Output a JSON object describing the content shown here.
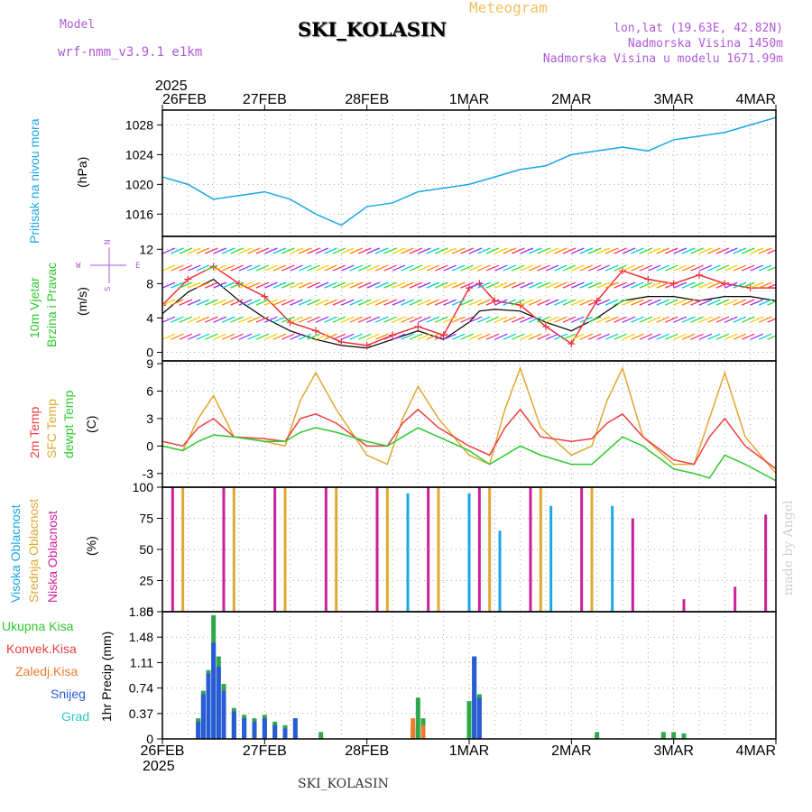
{
  "header": {
    "model_label": "Model",
    "model_name": "wrf-nmm_v3.9.1 e1km",
    "meteogram_label": "Meteogram",
    "station": "SKI_KOLASIN",
    "lonlat": "lon,lat (19.63E, 42.82N)",
    "altitude": "Nadmorska Visina 1450m",
    "model_altitude": "Nadmorska Visina u modelu 1671.99m"
  },
  "footer": {
    "station": "SKI_KOLASIN",
    "credit": "made by Angel"
  },
  "colors": {
    "pressure": "#1aa7e6",
    "wind_speed": "#000000",
    "wind_gust": "#e8303a",
    "temp_2m": "#ee4040",
    "temp_sfc": "#e0a830",
    "dewpt": "#2ec82e",
    "cloud_high": "#1aa7e6",
    "cloud_mid": "#e0a830",
    "cloud_low": "#cc1f99",
    "precip_total": "#2ea84a",
    "precip_conv": "#e84040",
    "precip_frz": "#f07a30",
    "precip_snow": "#2a5bd7",
    "precip_graupel": "#2ec8c8"
  },
  "chart_data": [
    {
      "type": "line",
      "panel": "pressure",
      "labels": {
        "name": "Pritisak na nivou mora",
        "unit": "(hPa)"
      },
      "x_dates": [
        "26FEB",
        "27FEB",
        "28FEB",
        "1MAR",
        "2MAR",
        "3MAR",
        "4MAR"
      ],
      "x_year": "2025",
      "ylim": [
        1013,
        1030
      ],
      "yticks": [
        1016,
        1020,
        1024,
        1028
      ],
      "grid": true,
      "series": [
        {
          "x": [
            0,
            0.25,
            0.5,
            0.75,
            1.0,
            1.25,
            1.5,
            1.75,
            2.0,
            2.25,
            2.5,
            2.75,
            3.0,
            3.25,
            3.5,
            3.75,
            4.0,
            4.25,
            4.5,
            4.75,
            5.0,
            5.25,
            5.5,
            5.75,
            6.0
          ],
          "y": [
            1021,
            1020,
            1018,
            1018.5,
            1019,
            1018,
            1016,
            1014.5,
            1017,
            1017.5,
            1019,
            1019.5,
            1020,
            1021,
            1022,
            1022.5,
            1024,
            1024.5,
            1025,
            1024.5,
            1026,
            1026.5,
            1027,
            1028,
            1029
          ]
        }
      ]
    },
    {
      "type": "line",
      "panel": "wind",
      "labels": {
        "name": "10m Vjetar",
        "name2": "Brzina i Pravac",
        "unit": "(m/s)"
      },
      "compass": {
        "n": "N",
        "s": "S",
        "e": "E",
        "w": "W"
      },
      "ylim": [
        -1,
        13.5
      ],
      "yticks": [
        0,
        4,
        8,
        12
      ],
      "grid": true,
      "series": [
        {
          "role": "speed",
          "x": [
            0,
            0.25,
            0.5,
            0.75,
            1.0,
            1.25,
            1.5,
            1.75,
            2.0,
            2.25,
            2.5,
            2.75,
            3.0,
            3.1,
            3.25,
            3.5,
            3.75,
            4.0,
            4.25,
            4.5,
            4.75,
            5.0,
            5.25,
            5.5,
            5.75,
            6.0
          ],
          "y": [
            4.5,
            7,
            8.5,
            6,
            4,
            2.5,
            1.5,
            0.8,
            0.5,
            1.5,
            2.5,
            1.5,
            3.5,
            4.8,
            5,
            4.8,
            3.5,
            2.5,
            4,
            6,
            6.5,
            6.5,
            6,
            6.5,
            6.5,
            6
          ]
        },
        {
          "role": "gust",
          "x": [
            0,
            0.25,
            0.5,
            0.75,
            1.0,
            1.25,
            1.5,
            1.75,
            2.0,
            2.25,
            2.5,
            2.75,
            3.0,
            3.1,
            3.25,
            3.5,
            3.75,
            4.0,
            4.25,
            4.5,
            4.75,
            5.0,
            5.25,
            5.5,
            5.75,
            6.0
          ],
          "y": [
            5.5,
            8.5,
            10,
            8,
            6.5,
            3.5,
            2.5,
            1.2,
            0.8,
            2,
            3,
            2,
            7.5,
            8,
            6,
            5.5,
            3,
            1,
            6,
            9.5,
            8.5,
            8,
            9,
            8,
            7.5,
            7.5
          ]
        }
      ]
    },
    {
      "type": "line",
      "panel": "temperature",
      "labels": {
        "name_2m": "2m Temp",
        "name_sfc": "SFC Temp",
        "name_dewpt": "dewpt Temp",
        "unit": "(C)"
      },
      "ylim": [
        -4.5,
        9.3
      ],
      "yticks": [
        -3,
        0,
        3,
        6,
        9
      ],
      "grid": true,
      "series": [
        {
          "role": "sfc",
          "x": [
            0,
            0.2,
            0.35,
            0.5,
            0.7,
            1.0,
            1.2,
            1.35,
            1.5,
            1.7,
            2.0,
            2.2,
            2.35,
            2.5,
            2.7,
            3.0,
            3.2,
            3.35,
            3.5,
            3.7,
            4.0,
            4.2,
            4.35,
            4.5,
            4.7,
            5.0,
            5.2,
            5.35,
            5.5,
            5.7,
            6.0
          ],
          "y": [
            0,
            -0.5,
            3,
            5.5,
            1,
            0.5,
            0,
            5,
            8,
            4,
            -1,
            -2,
            3,
            6.5,
            3,
            -1,
            -2,
            4,
            8.5,
            2,
            -1,
            0,
            5,
            8.5,
            1,
            -2,
            -2,
            3,
            8,
            1,
            -3
          ]
        },
        {
          "role": "t2m",
          "x": [
            0,
            0.2,
            0.35,
            0.5,
            0.7,
            1.0,
            1.2,
            1.35,
            1.5,
            1.7,
            2.0,
            2.2,
            2.35,
            2.5,
            2.7,
            3.0,
            3.2,
            3.35,
            3.5,
            3.7,
            4.0,
            4.2,
            4.35,
            4.5,
            4.7,
            5.0,
            5.2,
            5.35,
            5.5,
            5.7,
            6.0
          ],
          "y": [
            0.5,
            0,
            2,
            3,
            1,
            0.8,
            0.5,
            3,
            3.5,
            2.5,
            0,
            0,
            2.5,
            4,
            2,
            0,
            -1,
            2,
            4,
            1,
            0.5,
            0.8,
            2.5,
            3.5,
            1,
            -1.5,
            -2,
            1,
            3,
            0,
            -2.5
          ]
        },
        {
          "role": "dewpt",
          "x": [
            0,
            0.2,
            0.35,
            0.5,
            0.7,
            1.0,
            1.2,
            1.35,
            1.5,
            1.7,
            2.0,
            2.2,
            2.35,
            2.5,
            2.7,
            3.0,
            3.2,
            3.35,
            3.5,
            3.7,
            4.0,
            4.2,
            4.35,
            4.5,
            4.7,
            5.0,
            5.2,
            5.35,
            5.5,
            5.7,
            6.0
          ],
          "y": [
            0,
            -0.5,
            0.5,
            1.2,
            1,
            0.5,
            0.5,
            1.5,
            2,
            1.5,
            0.5,
            0,
            1,
            2,
            1,
            -0.5,
            -2,
            -1,
            0,
            -1,
            -2,
            -2,
            -0.5,
            1,
            0,
            -2.5,
            -3,
            -3.5,
            -1,
            -2,
            -3.8
          ]
        }
      ]
    },
    {
      "type": "bar",
      "panel": "clouds",
      "labels": {
        "name_high": "Visoka Oblacnost",
        "name_mid": "Srednja Oblacnost",
        "name_low": "Niska Oblacnost",
        "unit": "(%)"
      },
      "ylim": [
        0,
        100
      ],
      "yticks": [
        0,
        25,
        50,
        75,
        100
      ],
      "grid": true,
      "series": [
        {
          "role": "low",
          "x": [
            0.1,
            0.6,
            1.1,
            1.6,
            2.1,
            2.6,
            3.1,
            3.6,
            4.1,
            4.6,
            5.1,
            5.6,
            5.9
          ],
          "y": [
            100,
            100,
            100,
            100,
            100,
            100,
            100,
            100,
            100,
            75,
            10,
            20,
            78
          ]
        },
        {
          "role": "mid",
          "x": [
            0.2,
            0.7,
            1.2,
            1.7,
            2.2,
            2.7,
            3.2,
            3.7,
            4.2
          ],
          "y": [
            100,
            100,
            100,
            100,
            100,
            100,
            100,
            100,
            100
          ]
        },
        {
          "role": "high",
          "x": [
            2.4,
            3.0,
            3.3,
            3.8,
            4.4
          ],
          "y": [
            95,
            95,
            65,
            85,
            85
          ]
        }
      ]
    },
    {
      "type": "bar",
      "panel": "precip",
      "labels": {
        "name_total": "Ukupna Kisa",
        "name_conv": "Konvek.Kisa",
        "name_frz": "Zaledj.Kisa",
        "name_snow": "Snijeg",
        "name_graupel": "Grad",
        "unit": "1hr Precip (mm)"
      },
      "ylim": [
        0,
        1.85
      ],
      "yticks": [
        0,
        0.37,
        0.74,
        1.11,
        1.48,
        1.85
      ],
      "grid": true,
      "series": [
        {
          "role": "total",
          "x": [
            0.35,
            0.4,
            0.45,
            0.5,
            0.55,
            0.6,
            0.7,
            0.8,
            0.9,
            1.0,
            1.1,
            1.2,
            1.3,
            1.55,
            2.45,
            2.5,
            2.55,
            3.0,
            3.05,
            3.1,
            4.25,
            4.9,
            5.0,
            5.1
          ],
          "y": [
            0.3,
            0.7,
            1.0,
            1.8,
            1.2,
            0.8,
            0.45,
            0.35,
            0.3,
            0.35,
            0.25,
            0.2,
            0.3,
            0.1,
            0.2,
            0.6,
            0.3,
            0.55,
            1.2,
            0.65,
            0.1,
            0.1,
            0.1,
            0.08
          ]
        },
        {
          "role": "snow",
          "x": [
            0.35,
            0.4,
            0.45,
            0.5,
            0.55,
            0.6,
            0.7,
            0.8,
            0.9,
            1.0,
            1.1,
            1.2,
            1.3,
            3.05,
            3.1
          ],
          "y": [
            0.25,
            0.65,
            0.95,
            1.4,
            1.05,
            0.7,
            0.4,
            0.3,
            0.25,
            0.3,
            0.2,
            0.15,
            0.3,
            1.2,
            0.6
          ]
        },
        {
          "role": "frz",
          "x": [
            2.45,
            2.55
          ],
          "y": [
            0.3,
            0.2
          ]
        }
      ]
    }
  ]
}
